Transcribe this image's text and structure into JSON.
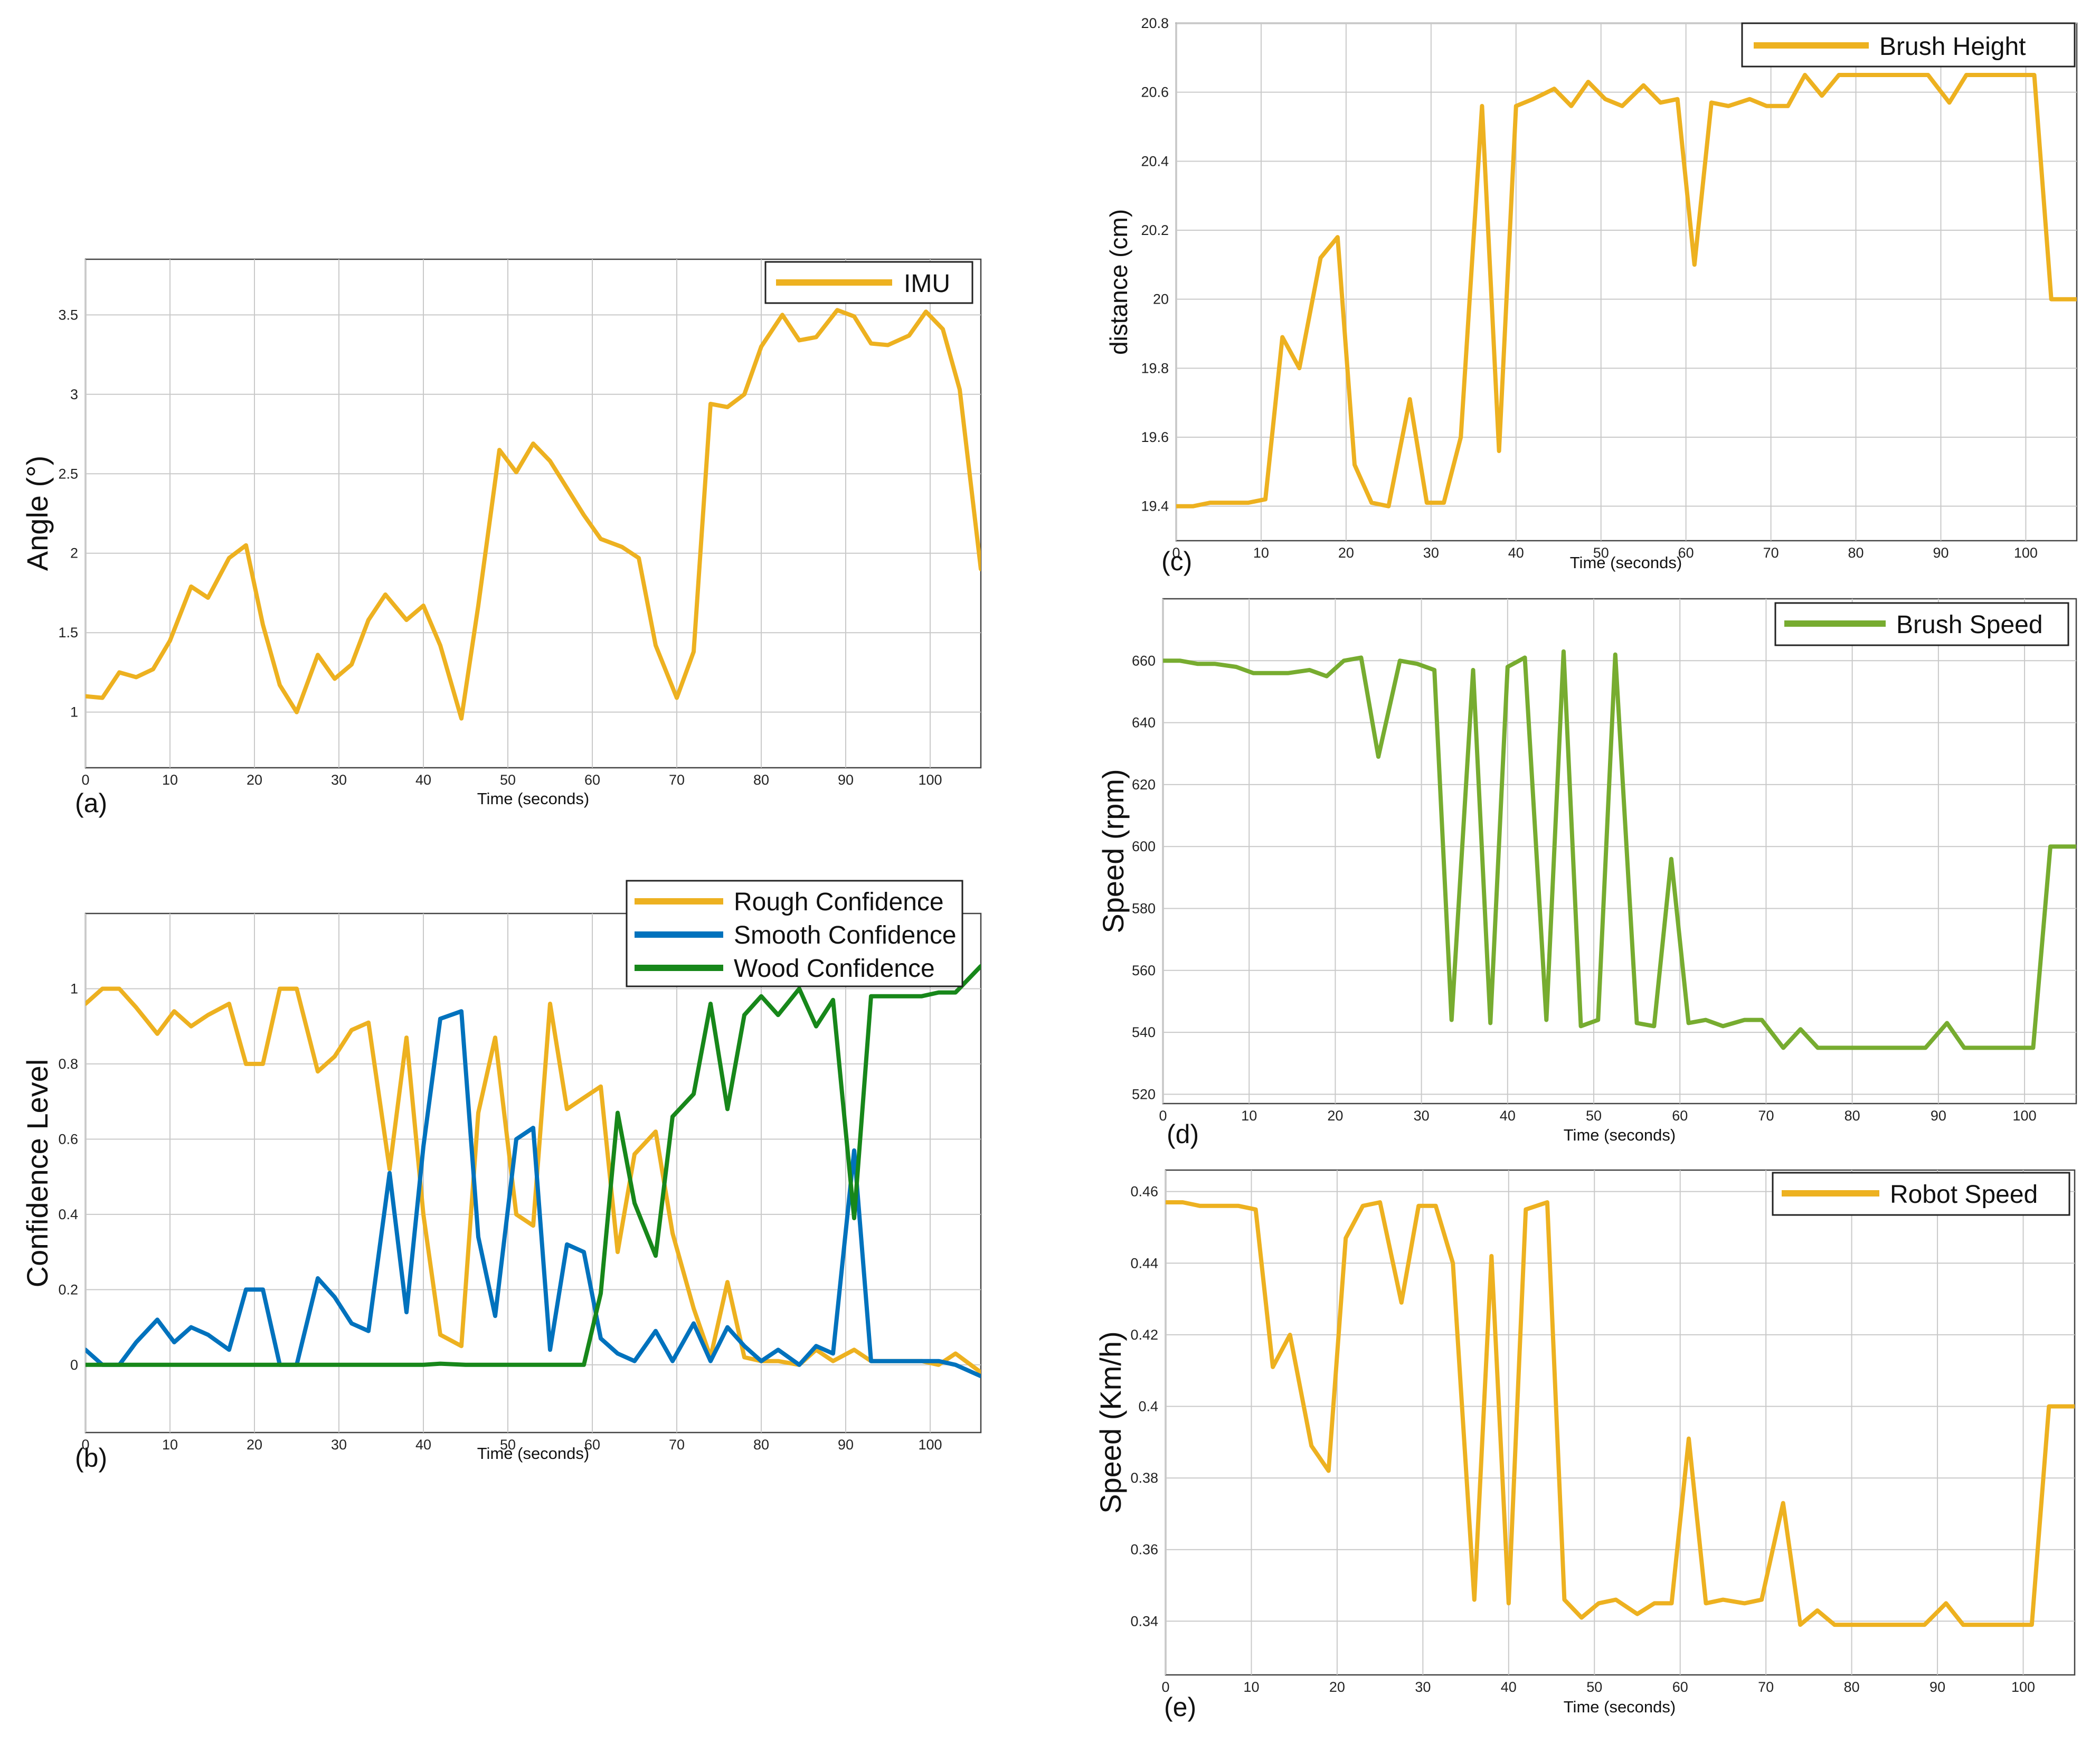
{
  "colors": {
    "imu": "#EDB120",
    "rough": "#EDB120",
    "smooth": "#0072BD",
    "wood": "#17871A",
    "brush_height": "#EDB120",
    "brush_speed": "#77AC30",
    "robot_speed": "#EDB120"
  },
  "chart_data": [
    {
      "id": "a",
      "type": "line",
      "panel_label": "(a)",
      "xlabel": "Time (seconds)",
      "ylabel": "Angle (°)",
      "xlim": [
        0,
        106
      ],
      "ylim": [
        0.65,
        3.85
      ],
      "xticks": [
        "0",
        "10",
        "20",
        "30",
        "40",
        "50",
        "60",
        "70",
        "80",
        "90",
        "100"
      ],
      "xtick_values": [
        0,
        10,
        20,
        30,
        40,
        50,
        60,
        70,
        80,
        90,
        100
      ],
      "yticks": [
        "1",
        "1.5",
        "2",
        "2.5",
        "3",
        "3.5"
      ],
      "ytick_values": [
        1,
        1.5,
        2,
        2.5,
        3,
        3.5
      ],
      "legend": {
        "position": "top-right",
        "entries": [
          "IMU"
        ]
      },
      "series": [
        {
          "name": "IMU",
          "color_key": "imu",
          "x": [
            0,
            2,
            4,
            6,
            8,
            10,
            12.5,
            14.5,
            17,
            19,
            21,
            23,
            25,
            27.5,
            29.5,
            31.5,
            33.5,
            35.5,
            38,
            40,
            42,
            44.5,
            46.5,
            49,
            51,
            53,
            55,
            57,
            59,
            61,
            63.5,
            65.5,
            67.5,
            70,
            72,
            74,
            76,
            78,
            80,
            82.5,
            84.5,
            86.5,
            89,
            91,
            93,
            95,
            97.5,
            99.5,
            101.5,
            103.5,
            106
          ],
          "y": [
            1.1,
            1.09,
            1.25,
            1.22,
            1.27,
            1.45,
            1.79,
            1.72,
            1.97,
            2.05,
            1.55,
            1.17,
            1.0,
            1.36,
            1.21,
            1.3,
            1.58,
            1.74,
            1.58,
            1.67,
            1.42,
            0.96,
            1.67,
            2.65,
            2.51,
            2.69,
            2.58,
            2.41,
            2.24,
            2.09,
            2.04,
            1.97,
            1.42,
            1.09,
            1.38,
            2.94,
            2.92,
            3.0,
            3.3,
            3.5,
            3.34,
            3.36,
            3.53,
            3.49,
            3.32,
            3.31,
            3.37,
            3.52,
            3.41,
            3.03,
            1.9
          ]
        }
      ]
    },
    {
      "id": "b",
      "type": "line",
      "panel_label": "(b)",
      "xlabel": "Time (seconds)",
      "ylabel": "Confidence Level",
      "xlim": [
        0,
        106
      ],
      "ylim": [
        -0.18,
        1.2
      ],
      "xticks": [
        "0",
        "10",
        "20",
        "30",
        "40",
        "50",
        "60",
        "70",
        "80",
        "90",
        "100"
      ],
      "xtick_values": [
        0,
        10,
        20,
        30,
        40,
        50,
        60,
        70,
        80,
        90,
        100
      ],
      "yticks": [
        "0",
        "0.2",
        "0.4",
        "0.6",
        "0.8",
        "1"
      ],
      "ytick_values": [
        0,
        0.2,
        0.4,
        0.6,
        0.8,
        1
      ],
      "legend": {
        "position": "top-right",
        "entries": [
          "Rough Confidence",
          "Smooth Confidence",
          "Wood Confidence"
        ]
      },
      "series": [
        {
          "name": "Rough Confidence",
          "color_key": "rough",
          "x": [
            0,
            2,
            4,
            6,
            8.5,
            10.5,
            12.5,
            14.5,
            17,
            19,
            21,
            23,
            25,
            27.5,
            29.5,
            31.5,
            33.5,
            36,
            38,
            40,
            42,
            44.5,
            46.5,
            48.5,
            51,
            53,
            55,
            57,
            59,
            61,
            63,
            65,
            67.5,
            69.5,
            72,
            74,
            76,
            78,
            80,
            82,
            84.5,
            86.5,
            88.5,
            91,
            93,
            95,
            97,
            99,
            101,
            103,
            106
          ],
          "y": [
            0.96,
            1.0,
            1.0,
            0.95,
            0.88,
            0.94,
            0.9,
            0.93,
            0.96,
            0.8,
            0.8,
            1.0,
            1.0,
            0.78,
            0.82,
            0.89,
            0.91,
            0.52,
            0.87,
            0.4,
            0.08,
            0.05,
            0.67,
            0.87,
            0.4,
            0.37,
            0.96,
            0.68,
            0.71,
            0.74,
            0.3,
            0.56,
            0.62,
            0.35,
            0.15,
            0.02,
            0.22,
            0.02,
            0.01,
            0.01,
            0.0,
            0.04,
            0.01,
            0.04,
            0.01,
            0.01,
            0.01,
            0.01,
            0.0,
            0.03,
            -0.02
          ]
        },
        {
          "name": "Smooth Confidence",
          "color_key": "smooth",
          "x": [
            0,
            2,
            4,
            6,
            8.5,
            10.5,
            12.5,
            14.5,
            17,
            19,
            21,
            23,
            25,
            27.5,
            29.5,
            31.5,
            33.5,
            36,
            38,
            40,
            42,
            44.5,
            46.5,
            48.5,
            51,
            53,
            55,
            57,
            59,
            61,
            63,
            65,
            67.5,
            69.5,
            72,
            74,
            76,
            78,
            80,
            82,
            84.5,
            86.5,
            88.5,
            91,
            93,
            95,
            97,
            99,
            101,
            103,
            106
          ],
          "y": [
            0.04,
            0.0,
            0.0,
            0.06,
            0.12,
            0.06,
            0.1,
            0.08,
            0.04,
            0.2,
            0.2,
            0.0,
            0.0,
            0.23,
            0.18,
            0.11,
            0.09,
            0.51,
            0.14,
            0.58,
            0.92,
            0.94,
            0.34,
            0.13,
            0.6,
            0.63,
            0.04,
            0.32,
            0.3,
            0.07,
            0.03,
            0.01,
            0.09,
            0.01,
            0.11,
            0.01,
            0.1,
            0.05,
            0.01,
            0.04,
            0.0,
            0.05,
            0.03,
            0.57,
            0.01,
            0.01,
            0.01,
            0.01,
            0.01,
            0.0,
            -0.03
          ]
        },
        {
          "name": "Wood Confidence",
          "color_key": "wood",
          "x": [
            0,
            10,
            20,
            30,
            35,
            40,
            42,
            45,
            50,
            55,
            59,
            61,
            63,
            65,
            67.5,
            69.5,
            72,
            74,
            76,
            78,
            80,
            82,
            84.5,
            86.5,
            88.5,
            91,
            93,
            95,
            97,
            99,
            101,
            103,
            106
          ],
          "y": [
            0.0,
            0.0,
            0.0,
            0.0,
            0.0,
            0.0,
            0.003,
            0.0,
            0.0,
            0.0,
            0.0,
            0.19,
            0.67,
            0.43,
            0.29,
            0.66,
            0.72,
            0.96,
            0.68,
            0.93,
            0.98,
            0.93,
            1.0,
            0.9,
            0.97,
            0.39,
            0.98,
            0.98,
            0.98,
            0.98,
            0.99,
            0.99,
            1.06
          ]
        }
      ]
    },
    {
      "id": "c",
      "type": "line",
      "panel_label": "(c)",
      "xlabel": "Time (seconds)",
      "ylabel": "distance (cm)",
      "xlim": [
        0,
        106
      ],
      "ylim": [
        19.3,
        20.8
      ],
      "xticks": [
        "0",
        "10",
        "20",
        "30",
        "40",
        "50",
        "60",
        "70",
        "80",
        "90",
        "100"
      ],
      "xtick_values": [
        0,
        10,
        20,
        30,
        40,
        50,
        60,
        70,
        80,
        90,
        100
      ],
      "yticks": [
        "19.4",
        "19.6",
        "19.8",
        "20",
        "20.2",
        "20.4",
        "20.6",
        "20.8"
      ],
      "ytick_values": [
        19.4,
        19.6,
        19.8,
        20,
        20.2,
        20.4,
        20.6,
        20.8
      ],
      "legend": {
        "position": "top-right",
        "entries": [
          "Brush Height"
        ]
      },
      "series": [
        {
          "name": "Brush Height",
          "color_key": "brush_height",
          "x": [
            0,
            2,
            4,
            6,
            8.5,
            10.5,
            12.5,
            14.5,
            17,
            19,
            21,
            23,
            25,
            27.5,
            29.5,
            31.5,
            33.5,
            36,
            38,
            40,
            42,
            44.5,
            46.5,
            48.5,
            50.5,
            52.5,
            55,
            57,
            59,
            61,
            63,
            65,
            67.5,
            69.5,
            72,
            74,
            76,
            78,
            80,
            82,
            84.5,
            86.5,
            88.5,
            91,
            93,
            95,
            97,
            99,
            101,
            103,
            106
          ],
          "y": [
            19.4,
            19.4,
            19.41,
            19.41,
            19.41,
            19.42,
            19.89,
            19.8,
            20.12,
            20.18,
            19.52,
            19.41,
            19.4,
            19.71,
            19.41,
            19.41,
            19.6,
            20.56,
            19.56,
            20.56,
            20.58,
            20.61,
            20.56,
            20.63,
            20.58,
            20.56,
            20.62,
            20.57,
            20.58,
            20.1,
            20.57,
            20.56,
            20.58,
            20.56,
            20.56,
            20.65,
            20.59,
            20.65,
            20.65,
            20.65,
            20.65,
            20.65,
            20.65,
            20.57,
            20.65,
            20.65,
            20.65,
            20.65,
            20.65,
            20.0,
            20.0
          ]
        }
      ]
    },
    {
      "id": "d",
      "type": "line",
      "panel_label": "(d)",
      "xlabel": "Time (seconds)",
      "ylabel": "Speed (rpm)",
      "xlim": [
        0,
        106
      ],
      "ylim": [
        517,
        680
      ],
      "xticks": [
        "0",
        "10",
        "20",
        "30",
        "40",
        "50",
        "60",
        "70",
        "80",
        "90",
        "100"
      ],
      "xtick_values": [
        0,
        10,
        20,
        30,
        40,
        50,
        60,
        70,
        80,
        90,
        100
      ],
      "yticks": [
        "520",
        "540",
        "560",
        "580",
        "600",
        "620",
        "640",
        "660"
      ],
      "ytick_values": [
        520,
        540,
        560,
        580,
        600,
        620,
        640,
        660
      ],
      "legend": {
        "position": "top-right",
        "entries": [
          "Brush Speed"
        ]
      },
      "series": [
        {
          "name": "Brush Speed",
          "color_key": "brush_speed",
          "x": [
            0,
            2,
            4,
            6,
            8.5,
            10.5,
            12.5,
            14.5,
            17,
            19,
            21,
            23,
            25,
            27.5,
            29.5,
            31.5,
            33.5,
            36,
            38,
            40,
            42,
            44.5,
            46.5,
            48.5,
            50.5,
            52.5,
            55,
            57,
            59,
            61,
            63,
            65,
            67.5,
            69.5,
            72,
            74,
            76,
            78,
            80,
            82,
            84.5,
            86.5,
            88.5,
            91,
            93,
            95,
            97,
            99,
            101,
            103,
            106
          ],
          "y": [
            660,
            660,
            659,
            659,
            658,
            656,
            656,
            656,
            657,
            655,
            660,
            661,
            629,
            660,
            659,
            657,
            544,
            657,
            543,
            658,
            661,
            544,
            663,
            542,
            544,
            662,
            543,
            542,
            596,
            543,
            544,
            542,
            544,
            544,
            535,
            541,
            535,
            535,
            535,
            535,
            535,
            535,
            535,
            543,
            535,
            535,
            535,
            535,
            535,
            600,
            600
          ]
        }
      ]
    },
    {
      "id": "e",
      "type": "line",
      "panel_label": "(e)",
      "xlabel": "Time (seconds)",
      "ylabel": "Speed (Km/h)",
      "xlim": [
        0,
        106
      ],
      "ylim": [
        0.325,
        0.466
      ],
      "xticks": [
        "0",
        "10",
        "20",
        "30",
        "40",
        "50",
        "60",
        "70",
        "80",
        "90",
        "100"
      ],
      "xtick_values": [
        0,
        10,
        20,
        30,
        40,
        50,
        60,
        70,
        80,
        90,
        100
      ],
      "yticks": [
        "0.34",
        "0.36",
        "0.38",
        "0.4",
        "0.42",
        "0.44",
        "0.46"
      ],
      "ytick_values": [
        0.34,
        0.36,
        0.38,
        0.4,
        0.42,
        0.44,
        0.46
      ],
      "legend": {
        "position": "top-right",
        "entries": [
          "Robot Speed"
        ]
      },
      "series": [
        {
          "name": "Robot Speed",
          "color_key": "robot_speed",
          "x": [
            0,
            2,
            4,
            6,
            8.5,
            10.5,
            12.5,
            14.5,
            17,
            19,
            21,
            23,
            25,
            27.5,
            29.5,
            31.5,
            33.5,
            36,
            38,
            40,
            42,
            44.5,
            46.5,
            48.5,
            50.5,
            52.5,
            55,
            57,
            59,
            61,
            63,
            65,
            67.5,
            69.5,
            72,
            74,
            76,
            78,
            80,
            82,
            84.5,
            86.5,
            88.5,
            91,
            93,
            95,
            97,
            99,
            101,
            103,
            106
          ],
          "y": [
            0.457,
            0.457,
            0.456,
            0.456,
            0.456,
            0.455,
            0.411,
            0.42,
            0.389,
            0.382,
            0.447,
            0.456,
            0.457,
            0.429,
            0.456,
            0.456,
            0.44,
            0.346,
            0.442,
            0.345,
            0.455,
            0.457,
            0.346,
            0.341,
            0.345,
            0.346,
            0.342,
            0.345,
            0.345,
            0.391,
            0.345,
            0.346,
            0.345,
            0.346,
            0.373,
            0.339,
            0.343,
            0.339,
            0.339,
            0.339,
            0.339,
            0.339,
            0.339,
            0.345,
            0.339,
            0.339,
            0.339,
            0.339,
            0.339,
            0.4,
            0.4
          ]
        }
      ]
    }
  ]
}
